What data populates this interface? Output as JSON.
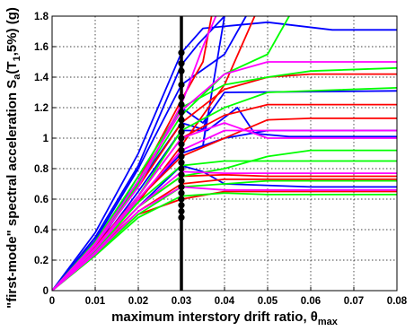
{
  "chart_data": {
    "type": "line",
    "xlabel": "maximum interstory drift ratio, θ",
    "xlabel_sub": "max",
    "ylabel": "\"first-mode\" spectral acceleration S",
    "ylabel_sub1": "a",
    "ylabel_mid": "(T",
    "ylabel_sub2": "1",
    "ylabel_end": ",5%) (g)",
    "xlim": [
      0,
      0.08
    ],
    "ylim": [
      0,
      1.8
    ],
    "x_ticks": [
      "0",
      "0.01",
      "0.02",
      "0.03",
      "0.04",
      "0.05",
      "0.06",
      "0.07",
      "0.08"
    ],
    "y_ticks": [
      "0",
      "0.2",
      "0.4",
      "0.6",
      "0.8",
      "1",
      "1.2",
      "1.4",
      "1.6",
      "1.8"
    ],
    "grid": true,
    "threshold_line": {
      "x": 0.03,
      "color": "#000000"
    },
    "threshold_points_y": [
      0.48,
      0.52,
      0.56,
      0.6,
      0.64,
      0.68,
      0.72,
      0.76,
      0.8,
      0.84,
      0.88,
      0.92,
      0.96,
      1.0,
      1.04,
      1.08,
      1.12,
      1.17,
      1.22,
      1.27,
      1.35,
      1.44,
      1.49,
      1.56
    ],
    "colors": {
      "blue": "#0000ff",
      "red": "#ff0000",
      "green": "#00ff00",
      "magenta": "#ff00ff",
      "black": "#000000"
    },
    "series": [
      {
        "color": "blue",
        "points": [
          [
            0,
            0
          ],
          [
            0.01,
            0.38
          ],
          [
            0.02,
            0.9
          ],
          [
            0.03,
            1.56
          ],
          [
            0.035,
            1.72
          ],
          [
            0.05,
            1.76
          ],
          [
            0.065,
            1.71
          ],
          [
            0.08,
            1.71
          ]
        ]
      },
      {
        "color": "blue",
        "points": [
          [
            0,
            0
          ],
          [
            0.01,
            0.35
          ],
          [
            0.02,
            0.82
          ],
          [
            0.03,
            1.48
          ],
          [
            0.034,
            1.62
          ],
          [
            0.04,
            1.8
          ]
        ]
      },
      {
        "color": "blue",
        "points": [
          [
            0,
            0
          ],
          [
            0.01,
            0.33
          ],
          [
            0.02,
            0.8
          ],
          [
            0.03,
            1.35
          ],
          [
            0.04,
            1.55
          ],
          [
            0.045,
            1.8
          ]
        ]
      },
      {
        "color": "blue",
        "points": [
          [
            0,
            0
          ],
          [
            0.01,
            0.3
          ],
          [
            0.02,
            0.75
          ],
          [
            0.03,
            1.2
          ],
          [
            0.035,
            1.1
          ],
          [
            0.04,
            1.3
          ],
          [
            0.08,
            1.31
          ]
        ]
      },
      {
        "color": "blue",
        "points": [
          [
            0,
            0
          ],
          [
            0.01,
            0.28
          ],
          [
            0.02,
            0.7
          ],
          [
            0.03,
            1.1
          ],
          [
            0.036,
            1.05
          ],
          [
            0.043,
            1.2
          ],
          [
            0.047,
            1.03
          ],
          [
            0.055,
            1.01
          ],
          [
            0.08,
            1.01
          ]
        ]
      },
      {
        "color": "blue",
        "points": [
          [
            0,
            0
          ],
          [
            0.01,
            0.27
          ],
          [
            0.02,
            0.65
          ],
          [
            0.03,
            1.05
          ],
          [
            0.035,
            1.05
          ],
          [
            0.036,
            1.15
          ],
          [
            0.035,
            0.95
          ],
          [
            0.04,
            1.8
          ]
        ]
      },
      {
        "color": "blue",
        "points": [
          [
            0,
            0
          ],
          [
            0.01,
            0.26
          ],
          [
            0.02,
            0.6
          ],
          [
            0.03,
            0.9
          ],
          [
            0.04,
            1.0
          ],
          [
            0.05,
            1.05
          ],
          [
            0.06,
            1.05
          ],
          [
            0.08,
            1.05
          ]
        ]
      },
      {
        "color": "blue",
        "points": [
          [
            0,
            0
          ],
          [
            0.01,
            0.25
          ],
          [
            0.02,
            0.55
          ],
          [
            0.03,
            0.82
          ],
          [
            0.035,
            0.78
          ],
          [
            0.04,
            0.7
          ],
          [
            0.06,
            0.68
          ],
          [
            0.08,
            0.68
          ]
        ]
      },
      {
        "color": "red",
        "points": [
          [
            0,
            0
          ],
          [
            0.01,
            0.3
          ],
          [
            0.02,
            0.68
          ],
          [
            0.03,
            1.1
          ],
          [
            0.04,
            1.32
          ],
          [
            0.05,
            1.4
          ],
          [
            0.06,
            1.42
          ],
          [
            0.08,
            1.42
          ]
        ]
      },
      {
        "color": "red",
        "points": [
          [
            0,
            0
          ],
          [
            0.01,
            0.28
          ],
          [
            0.02,
            0.6
          ],
          [
            0.03,
            0.88
          ],
          [
            0.04,
            1.0
          ],
          [
            0.05,
            1.12
          ],
          [
            0.06,
            1.13
          ],
          [
            0.08,
            1.13
          ]
        ]
      },
      {
        "color": "red",
        "points": [
          [
            0,
            0
          ],
          [
            0.01,
            0.26
          ],
          [
            0.02,
            0.55
          ],
          [
            0.03,
            0.75
          ],
          [
            0.04,
            0.76
          ],
          [
            0.05,
            0.75
          ],
          [
            0.08,
            0.75
          ]
        ]
      },
      {
        "color": "red",
        "points": [
          [
            0,
            0
          ],
          [
            0.01,
            0.27
          ],
          [
            0.02,
            0.58
          ],
          [
            0.03,
            0.95
          ],
          [
            0.04,
            1.35
          ],
          [
            0.047,
            1.8
          ]
        ]
      },
      {
        "color": "red",
        "points": [
          [
            0,
            0
          ],
          [
            0.01,
            0.3
          ],
          [
            0.02,
            0.72
          ],
          [
            0.03,
            1.25
          ],
          [
            0.035,
            1.5
          ],
          [
            0.037,
            1.8
          ]
        ]
      },
      {
        "color": "red",
        "points": [
          [
            0,
            0
          ],
          [
            0.01,
            0.25
          ],
          [
            0.02,
            0.52
          ],
          [
            0.03,
            0.7
          ],
          [
            0.04,
            0.73
          ],
          [
            0.05,
            0.73
          ],
          [
            0.08,
            0.73
          ]
        ]
      },
      {
        "color": "red",
        "points": [
          [
            0,
            0
          ],
          [
            0.01,
            0.24
          ],
          [
            0.02,
            0.5
          ],
          [
            0.03,
            0.6
          ],
          [
            0.04,
            0.65
          ],
          [
            0.05,
            0.65
          ],
          [
            0.08,
            0.65
          ]
        ]
      },
      {
        "color": "red",
        "points": [
          [
            0,
            0
          ],
          [
            0.01,
            0.29
          ],
          [
            0.02,
            0.62
          ],
          [
            0.03,
            1.0
          ],
          [
            0.04,
            1.15
          ],
          [
            0.05,
            1.22
          ],
          [
            0.08,
            1.22
          ]
        ]
      },
      {
        "color": "green",
        "points": [
          [
            0,
            0
          ],
          [
            0.01,
            0.32
          ],
          [
            0.02,
            0.75
          ],
          [
            0.03,
            1.2
          ],
          [
            0.04,
            1.35
          ],
          [
            0.05,
            1.4
          ],
          [
            0.06,
            1.44
          ],
          [
            0.08,
            1.46
          ]
        ]
      },
      {
        "color": "green",
        "points": [
          [
            0,
            0
          ],
          [
            0.01,
            0.26
          ],
          [
            0.02,
            0.58
          ],
          [
            0.03,
            0.82
          ],
          [
            0.04,
            0.85
          ],
          [
            0.05,
            0.85
          ],
          [
            0.08,
            0.85
          ]
        ]
      },
      {
        "color": "green",
        "points": [
          [
            0,
            0
          ],
          [
            0.01,
            0.25
          ],
          [
            0.02,
            0.55
          ],
          [
            0.03,
            0.75
          ],
          [
            0.04,
            0.8
          ],
          [
            0.05,
            0.88
          ],
          [
            0.06,
            0.92
          ],
          [
            0.08,
            0.92
          ]
        ]
      },
      {
        "color": "green",
        "points": [
          [
            0,
            0
          ],
          [
            0.01,
            0.27
          ],
          [
            0.02,
            0.62
          ],
          [
            0.03,
            1.05
          ],
          [
            0.04,
            1.2
          ],
          [
            0.05,
            1.3
          ],
          [
            0.08,
            1.33
          ]
        ]
      },
      {
        "color": "green",
        "points": [
          [
            0,
            0
          ],
          [
            0.01,
            0.24
          ],
          [
            0.02,
            0.5
          ],
          [
            0.03,
            0.68
          ],
          [
            0.04,
            0.7
          ],
          [
            0.05,
            0.72
          ],
          [
            0.08,
            0.72
          ]
        ]
      },
      {
        "color": "green",
        "points": [
          [
            0,
            0
          ],
          [
            0.01,
            0.23
          ],
          [
            0.02,
            0.48
          ],
          [
            0.03,
            0.62
          ],
          [
            0.04,
            0.64
          ],
          [
            0.05,
            0.63
          ],
          [
            0.08,
            0.63
          ]
        ]
      },
      {
        "color": "green",
        "points": [
          [
            0,
            0
          ],
          [
            0.01,
            0.3
          ],
          [
            0.02,
            0.7
          ],
          [
            0.03,
            1.15
          ],
          [
            0.04,
            1.42
          ],
          [
            0.05,
            1.55
          ],
          [
            0.055,
            1.8
          ]
        ]
      },
      {
        "color": "magenta",
        "points": [
          [
            0,
            0
          ],
          [
            0.01,
            0.31
          ],
          [
            0.02,
            0.72
          ],
          [
            0.03,
            1.18
          ],
          [
            0.04,
            1.42
          ],
          [
            0.05,
            1.5
          ],
          [
            0.08,
            1.5
          ]
        ]
      },
      {
        "color": "magenta",
        "points": [
          [
            0,
            0
          ],
          [
            0.01,
            0.27
          ],
          [
            0.02,
            0.6
          ],
          [
            0.03,
            0.92
          ],
          [
            0.04,
            1.05
          ],
          [
            0.05,
            1.05
          ],
          [
            0.08,
            1.05
          ]
        ]
      },
      {
        "color": "magenta",
        "points": [
          [
            0,
            0
          ],
          [
            0.01,
            0.25
          ],
          [
            0.02,
            0.55
          ],
          [
            0.03,
            0.78
          ],
          [
            0.04,
            0.77
          ],
          [
            0.05,
            0.77
          ],
          [
            0.08,
            0.77
          ]
        ]
      },
      {
        "color": "magenta",
        "points": [
          [
            0,
            0
          ],
          [
            0.01,
            0.24
          ],
          [
            0.02,
            0.52
          ],
          [
            0.03,
            0.68
          ],
          [
            0.04,
            0.66
          ],
          [
            0.05,
            0.66
          ],
          [
            0.08,
            0.66
          ]
        ]
      },
      {
        "color": "magenta",
        "points": [
          [
            0,
            0
          ],
          [
            0.01,
            0.3
          ],
          [
            0.02,
            0.68
          ],
          [
            0.03,
            1.22
          ],
          [
            0.035,
            1.6
          ],
          [
            0.038,
            1.8
          ]
        ]
      },
      {
        "color": "magenta",
        "points": [
          [
            0,
            0
          ],
          [
            0.01,
            0.28
          ],
          [
            0.02,
            0.62
          ],
          [
            0.03,
            1.0
          ],
          [
            0.04,
            1.1
          ],
          [
            0.05,
            1.0
          ],
          [
            0.06,
            1.0
          ],
          [
            0.08,
            1.0
          ]
        ]
      }
    ]
  }
}
